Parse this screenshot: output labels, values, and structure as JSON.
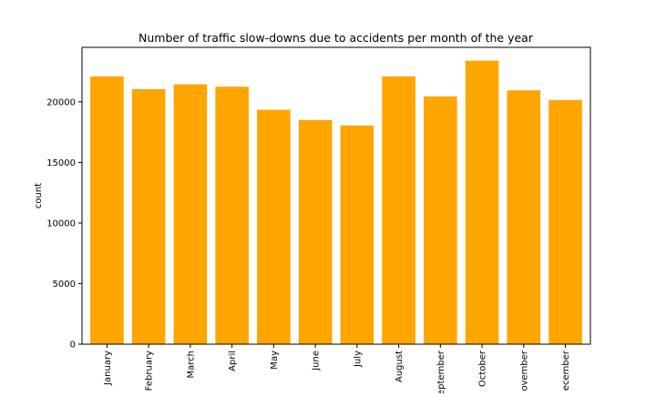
{
  "chart_data": {
    "type": "bar",
    "title": "Number of traffic slow-downs due to accidents per month of the year",
    "xlabel": "",
    "ylabel": "count",
    "categories": [
      "January",
      "February",
      "March",
      "April",
      "May",
      "June",
      "July",
      "August",
      "eptember",
      "October",
      "ovember",
      "ecember"
    ],
    "values": [
      22100,
      21050,
      21450,
      21250,
      19350,
      18500,
      18050,
      22100,
      20450,
      23400,
      20950,
      20150
    ],
    "ylim": [
      0,
      24500
    ],
    "yticks": [
      0,
      5000,
      10000,
      15000,
      20000
    ],
    "bar_color": "#ffa500",
    "grid": false,
    "legend": "none"
  }
}
